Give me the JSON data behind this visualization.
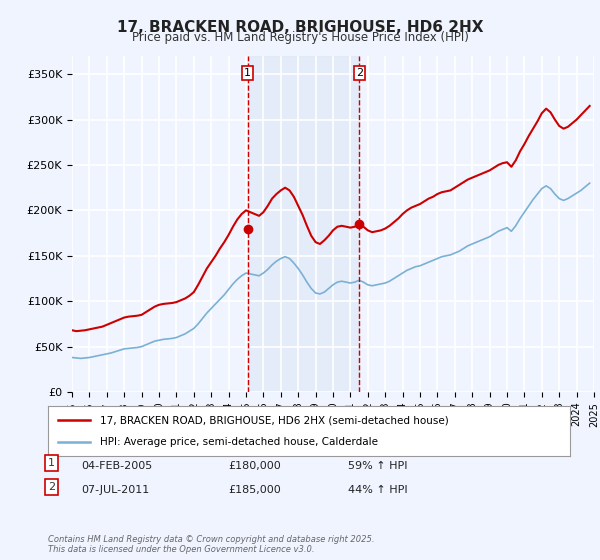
{
  "title": "17, BRACKEN ROAD, BRIGHOUSE, HD6 2HX",
  "subtitle": "Price paid vs. HM Land Registry's House Price Index (HPI)",
  "ylabel_ticks": [
    "£0",
    "£50K",
    "£100K",
    "£150K",
    "£200K",
    "£250K",
    "£300K",
    "£350K"
  ],
  "ytick_values": [
    0,
    50000,
    100000,
    150000,
    200000,
    250000,
    300000,
    350000
  ],
  "ylim": [
    0,
    370000
  ],
  "xlim_year": [
    1995,
    2025
  ],
  "background_color": "#f0f4ff",
  "plot_bg_color": "#f0f4ff",
  "grid_color": "#ffffff",
  "red_line_color": "#cc0000",
  "blue_line_color": "#7ab0d4",
  "purchase1": {
    "date_x": 2005.09,
    "price": 180000,
    "label": "1"
  },
  "purchase2": {
    "date_x": 2011.52,
    "price": 185000,
    "label": "2"
  },
  "vline_color": "#cc0000",
  "shade_color": "#dce8f5",
  "marker_color": "#cc0000",
  "legend_label_red": "17, BRACKEN ROAD, BRIGHOUSE, HD6 2HX (semi-detached house)",
  "legend_label_blue": "HPI: Average price, semi-detached house, Calderdale",
  "annotation1": "1    04-FEB-2005        £180,000        59% ↑ HPI",
  "annotation2": "2    07-JUL-2011        £185,000        44% ↑ HPI",
  "footer": "Contains HM Land Registry data © Crown copyright and database right 2025.\nThis data is licensed under the Open Government Licence v3.0.",
  "hpi_red_data": {
    "years": [
      1995.0,
      1995.25,
      1995.5,
      1995.75,
      1996.0,
      1996.25,
      1996.5,
      1996.75,
      1997.0,
      1997.25,
      1997.5,
      1997.75,
      1998.0,
      1998.25,
      1998.5,
      1998.75,
      1999.0,
      1999.25,
      1999.5,
      1999.75,
      2000.0,
      2000.25,
      2000.5,
      2000.75,
      2001.0,
      2001.25,
      2001.5,
      2001.75,
      2002.0,
      2002.25,
      2002.5,
      2002.75,
      2003.0,
      2003.25,
      2003.5,
      2003.75,
      2004.0,
      2004.25,
      2004.5,
      2004.75,
      2005.0,
      2005.25,
      2005.5,
      2005.75,
      2006.0,
      2006.25,
      2006.5,
      2006.75,
      2007.0,
      2007.25,
      2007.5,
      2007.75,
      2008.0,
      2008.25,
      2008.5,
      2008.75,
      2009.0,
      2009.25,
      2009.5,
      2009.75,
      2010.0,
      2010.25,
      2010.5,
      2010.75,
      2011.0,
      2011.25,
      2011.5,
      2011.75,
      2012.0,
      2012.25,
      2012.5,
      2012.75,
      2013.0,
      2013.25,
      2013.5,
      2013.75,
      2014.0,
      2014.25,
      2014.5,
      2014.75,
      2015.0,
      2015.25,
      2015.5,
      2015.75,
      2016.0,
      2016.25,
      2016.5,
      2016.75,
      2017.0,
      2017.25,
      2017.5,
      2017.75,
      2018.0,
      2018.25,
      2018.5,
      2018.75,
      2019.0,
      2019.25,
      2019.5,
      2019.75,
      2020.0,
      2020.25,
      2020.5,
      2020.75,
      2021.0,
      2021.25,
      2021.5,
      2021.75,
      2022.0,
      2022.25,
      2022.5,
      2022.75,
      2023.0,
      2023.25,
      2023.5,
      2023.75,
      2024.0,
      2024.25,
      2024.5,
      2024.75
    ],
    "prices": [
      68000,
      67000,
      67500,
      68000,
      69000,
      70000,
      71000,
      72000,
      74000,
      76000,
      78000,
      80000,
      82000,
      83000,
      83500,
      84000,
      85000,
      88000,
      91000,
      94000,
      96000,
      97000,
      97500,
      98000,
      99000,
      101000,
      103000,
      106000,
      110000,
      118000,
      127000,
      136000,
      143000,
      150000,
      158000,
      165000,
      173000,
      182000,
      190000,
      196000,
      200000,
      198000,
      196000,
      194000,
      198000,
      205000,
      213000,
      218000,
      222000,
      225000,
      222000,
      215000,
      205000,
      195000,
      183000,
      172000,
      165000,
      163000,
      167000,
      172000,
      178000,
      182000,
      183000,
      182000,
      181000,
      182000,
      185000,
      182000,
      178000,
      176000,
      177000,
      178000,
      180000,
      183000,
      187000,
      191000,
      196000,
      200000,
      203000,
      205000,
      207000,
      210000,
      213000,
      215000,
      218000,
      220000,
      221000,
      222000,
      225000,
      228000,
      231000,
      234000,
      236000,
      238000,
      240000,
      242000,
      244000,
      247000,
      250000,
      252000,
      253000,
      248000,
      255000,
      265000,
      273000,
      282000,
      290000,
      298000,
      307000,
      312000,
      308000,
      300000,
      293000,
      290000,
      292000,
      296000,
      300000,
      305000,
      310000,
      315000
    ]
  },
  "hpi_blue_data": {
    "years": [
      1995.0,
      1995.25,
      1995.5,
      1995.75,
      1996.0,
      1996.25,
      1996.5,
      1996.75,
      1997.0,
      1997.25,
      1997.5,
      1997.75,
      1998.0,
      1998.25,
      1998.5,
      1998.75,
      1999.0,
      1999.25,
      1999.5,
      1999.75,
      2000.0,
      2000.25,
      2000.5,
      2000.75,
      2001.0,
      2001.25,
      2001.5,
      2001.75,
      2002.0,
      2002.25,
      2002.5,
      2002.75,
      2003.0,
      2003.25,
      2003.5,
      2003.75,
      2004.0,
      2004.25,
      2004.5,
      2004.75,
      2005.0,
      2005.25,
      2005.5,
      2005.75,
      2006.0,
      2006.25,
      2006.5,
      2006.75,
      2007.0,
      2007.25,
      2007.5,
      2007.75,
      2008.0,
      2008.25,
      2008.5,
      2008.75,
      2009.0,
      2009.25,
      2009.5,
      2009.75,
      2010.0,
      2010.25,
      2010.5,
      2010.75,
      2011.0,
      2011.25,
      2011.5,
      2011.75,
      2012.0,
      2012.25,
      2012.5,
      2012.75,
      2013.0,
      2013.25,
      2013.5,
      2013.75,
      2014.0,
      2014.25,
      2014.5,
      2014.75,
      2015.0,
      2015.25,
      2015.5,
      2015.75,
      2016.0,
      2016.25,
      2016.5,
      2016.75,
      2017.0,
      2017.25,
      2017.5,
      2017.75,
      2018.0,
      2018.25,
      2018.5,
      2018.75,
      2019.0,
      2019.25,
      2019.5,
      2019.75,
      2020.0,
      2020.25,
      2020.5,
      2020.75,
      2021.0,
      2021.25,
      2021.5,
      2021.75,
      2022.0,
      2022.25,
      2022.5,
      2022.75,
      2023.0,
      2023.25,
      2023.5,
      2023.75,
      2024.0,
      2024.25,
      2024.5,
      2024.75
    ],
    "prices": [
      38000,
      37500,
      37000,
      37500,
      38000,
      39000,
      40000,
      41000,
      42000,
      43000,
      44500,
      46000,
      47500,
      48000,
      48500,
      49000,
      50000,
      52000,
      54000,
      56000,
      57000,
      58000,
      58500,
      59000,
      60000,
      62000,
      64000,
      67000,
      70000,
      75000,
      81000,
      87000,
      92000,
      97000,
      102000,
      107000,
      113000,
      119000,
      124000,
      128000,
      131000,
      130000,
      129000,
      128000,
      131000,
      135000,
      140000,
      144000,
      147000,
      149000,
      147000,
      142000,
      136000,
      129000,
      121000,
      114000,
      109000,
      108000,
      110000,
      114000,
      118000,
      121000,
      122000,
      121000,
      120000,
      121000,
      123000,
      121000,
      118000,
      117000,
      118000,
      119000,
      120000,
      122000,
      125000,
      128000,
      131000,
      134000,
      136000,
      138000,
      139000,
      141000,
      143000,
      145000,
      147000,
      149000,
      150000,
      151000,
      153000,
      155000,
      158000,
      161000,
      163000,
      165000,
      167000,
      169000,
      171000,
      174000,
      177000,
      179000,
      181000,
      177000,
      183000,
      191000,
      198000,
      205000,
      212000,
      218000,
      224000,
      227000,
      224000,
      218000,
      213000,
      211000,
      213000,
      216000,
      219000,
      222000,
      226000,
      230000
    ]
  }
}
